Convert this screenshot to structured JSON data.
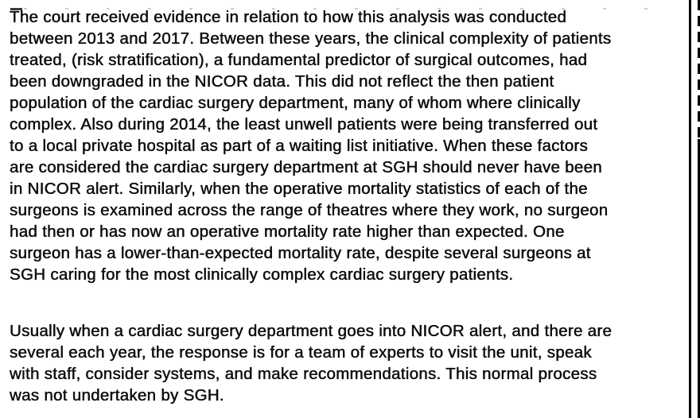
{
  "page": {
    "background": "#ffffff",
    "text_color": "#0e0e0e",
    "border_color": "#000000"
  },
  "document": {
    "paragraphs": [
      {
        "lines": [
          "The court received evidence in relation to how this analysis was conducted",
          "between 2013 and 2017. Between these years, the clinical complexity of patients",
          "treated, (risk stratification), a fundamental predictor of surgical outcomes, had",
          "been downgraded in the NICOR data. This did not reflect the then patient",
          "population of the cardiac surgery department, many of whom where clinically",
          "complex. Also during 2014, the least unwell patients were being transferred out",
          "to a local private hospital as part of a waiting list initiative. When these factors",
          "are considered the cardiac surgery department at SGH should never have been",
          "in NICOR alert. Similarly, when the operative mortality statistics of each of the",
          "surgeons is examined across the range of theatres where they work, no surgeon",
          "had then or has now an operative mortality rate higher than expected. One",
          "surgeon has a lower-than-expected mortality rate, despite several surgeons at",
          "SGH caring for the most clinically complex cardiac surgery patients."
        ]
      },
      {
        "lines": [
          "Usually when a cardiac surgery department goes into NICOR alert, and there are",
          "several each year, the response is for a team of experts to visit the unit, speak",
          "with staff, consider systems, and make recommendations. This normal process",
          "was not undertaken by SGH."
        ]
      }
    ]
  }
}
